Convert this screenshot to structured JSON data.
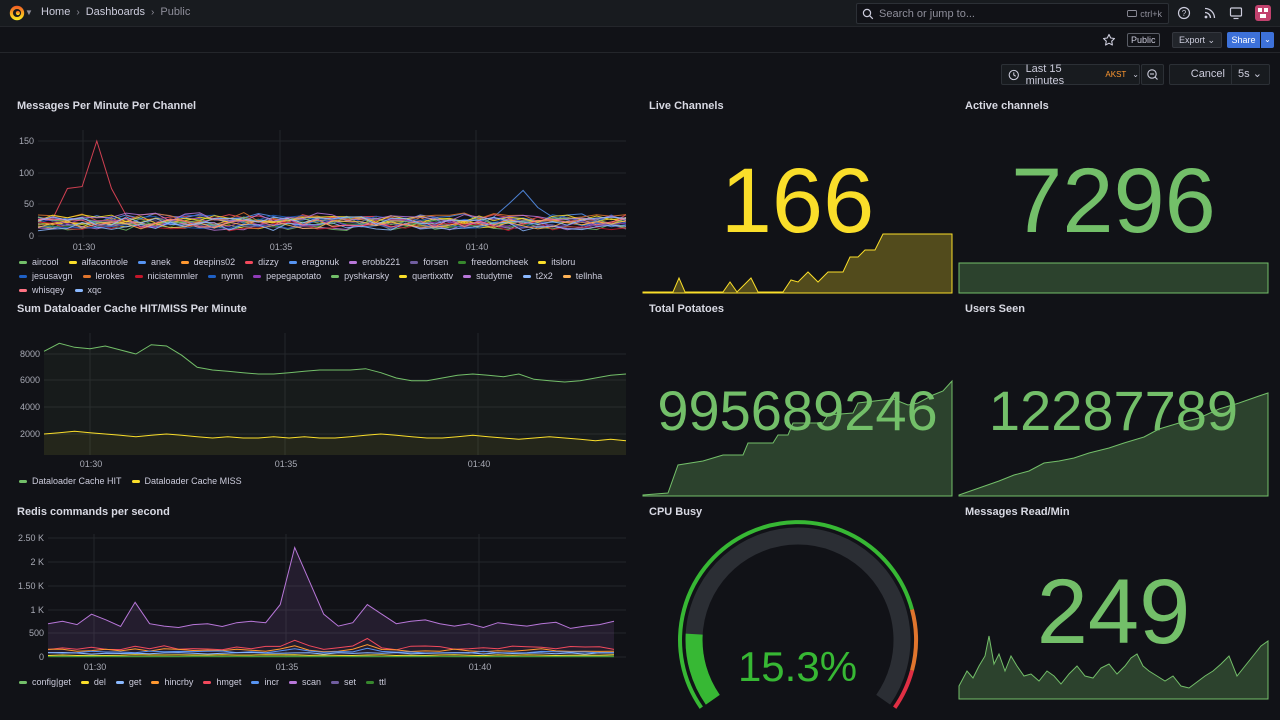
{
  "nav": {
    "breadcrumbs": [
      "Home",
      "Dashboards",
      "Public"
    ],
    "search_placeholder": "Search or jump to...",
    "search_shortcut": "ctrl+k"
  },
  "toolbar": {
    "public_label": "Public",
    "export_label": "Export",
    "share_label": "Share"
  },
  "time_controls": {
    "range_label": "Last 15 minutes",
    "timezone": "AKST",
    "cancel_label": "Cancel",
    "refresh_interval": "5s"
  },
  "colors": {
    "green": "#73bf69",
    "yellow": "#fade2a",
    "orange": "#ff9830",
    "red": "#f2495c",
    "blue": "#5794f2"
  },
  "panels": {
    "messages_per_minute": {
      "title": "Messages Per Minute Per Channel",
      "y_ticks": [
        "150",
        "100",
        "50",
        "0"
      ],
      "x_ticks": [
        "01:30",
        "01:35",
        "01:40"
      ],
      "legend": [
        {
          "name": "aircool",
          "color": "#73bf69"
        },
        {
          "name": "alfacontrole",
          "color": "#fade2a"
        },
        {
          "name": "anek",
          "color": "#5794f2"
        },
        {
          "name": "deepins02",
          "color": "#ff9830"
        },
        {
          "name": "dizzy",
          "color": "#f2495c"
        },
        {
          "name": "eragonuk",
          "color": "#5794f2"
        },
        {
          "name": "erobb221",
          "color": "#b877d9"
        },
        {
          "name": "forsen",
          "color": "#705da0"
        },
        {
          "name": "freedomcheek",
          "color": "#37872d"
        },
        {
          "name": "itsloru",
          "color": "#fade2a"
        },
        {
          "name": "jesusavgn",
          "color": "#1f60c4"
        },
        {
          "name": "lerokes",
          "color": "#e0752d"
        },
        {
          "name": "nicistemmler",
          "color": "#c4162a"
        },
        {
          "name": "nymn",
          "color": "#1f60c4"
        },
        {
          "name": "pepegapotato",
          "color": "#8f3bb8"
        },
        {
          "name": "pyshkarsky",
          "color": "#73bf69"
        },
        {
          "name": "quertixxttv",
          "color": "#fade2a"
        },
        {
          "name": "studytme",
          "color": "#b877d9"
        },
        {
          "name": "t2x2",
          "color": "#8ab8ff"
        },
        {
          "name": "tellnha",
          "color": "#ffb357"
        },
        {
          "name": "whisqey",
          "color": "#ff7383"
        },
        {
          "name": "xqc",
          "color": "#8ab8ff"
        }
      ]
    },
    "live_channels": {
      "title": "Live Channels",
      "value": "166",
      "color": "#fade2a"
    },
    "active_channels": {
      "title": "Active channels",
      "value": "7296",
      "color": "#73bf69"
    },
    "dataloader_cache": {
      "title": "Sum Dataloader Cache HIT/MISS Per Minute",
      "y_ticks": [
        "8000",
        "6000",
        "4000",
        "2000"
      ],
      "x_ticks": [
        "01:30",
        "01:35",
        "01:40"
      ],
      "legend": [
        {
          "name": "Dataloader Cache HIT",
          "color": "#73bf69"
        },
        {
          "name": "Dataloader Cache MISS",
          "color": "#fade2a"
        }
      ]
    },
    "total_potatoes": {
      "title": "Total Potatoes",
      "value": "995689246",
      "color": "#73bf69"
    },
    "users_seen": {
      "title": "Users Seen",
      "value": "12287789",
      "color": "#73bf69"
    },
    "redis_commands": {
      "title": "Redis commands per second",
      "y_ticks": [
        "2.50 K",
        "2 K",
        "1.50 K",
        "1 K",
        "500",
        "0"
      ],
      "x_ticks": [
        "01:30",
        "01:35",
        "01:40"
      ],
      "legend": [
        {
          "name": "config|get",
          "color": "#73bf69"
        },
        {
          "name": "del",
          "color": "#fade2a"
        },
        {
          "name": "get",
          "color": "#8ab8ff"
        },
        {
          "name": "hincrby",
          "color": "#ff9830"
        },
        {
          "name": "hmget",
          "color": "#f2495c"
        },
        {
          "name": "incr",
          "color": "#5794f2"
        },
        {
          "name": "scan",
          "color": "#b877d9"
        },
        {
          "name": "set",
          "color": "#705da0"
        },
        {
          "name": "ttl",
          "color": "#37872d"
        }
      ]
    },
    "cpu_busy": {
      "title": "CPU Busy",
      "value": "15.3%",
      "percent": 15.3,
      "color": "#37b834"
    },
    "messages_read": {
      "title": "Messages Read/Min",
      "value": "249",
      "color": "#73bf69"
    }
  }
}
